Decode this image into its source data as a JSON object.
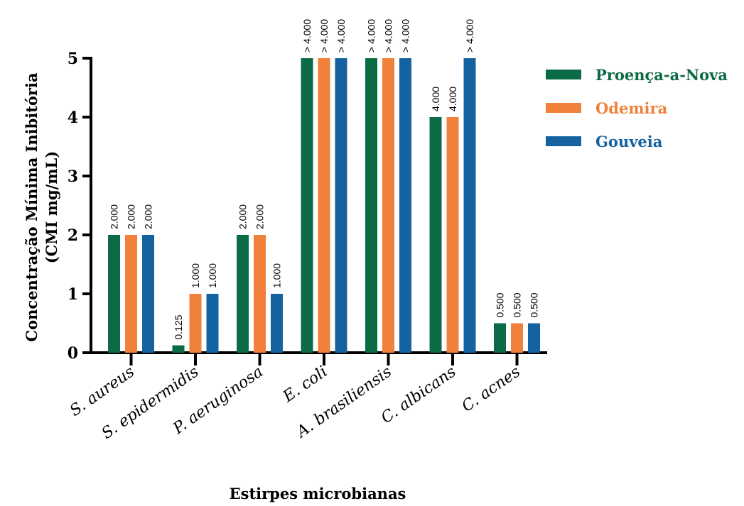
{
  "chart_data": {
    "type": "bar",
    "title": "",
    "ylabel": "Concentração Mínima Inibitória (CMI mg/mL)",
    "ylabel_lines": [
      "Concentração Mínima Inibitória",
      "(CMI mg/mL)"
    ],
    "xlabel": "Estirpes microbianas",
    "ylim": [
      0,
      5
    ],
    "yticks": [
      "0",
      "1",
      "2",
      "3",
      "4",
      "5"
    ],
    "categories": [
      "S. aureus",
      "S. epidermidis",
      "P. aeruginosa",
      "E. coli",
      "A. brasiliensis",
      "C. albicans",
      "C. acnes"
    ],
    "series": [
      {
        "name": "Proença-a-Nova",
        "color": "#0b6b45",
        "values": [
          2.0,
          0.125,
          2.0,
          5,
          5,
          4.0,
          0.5
        ],
        "labels": [
          "2.000",
          "0.125",
          "2.000",
          "> 4.000",
          "> 4.000",
          "4.000",
          "0.500"
        ]
      },
      {
        "name": "Odemira",
        "color": "#f0803a",
        "values": [
          2.0,
          1.0,
          2.0,
          5,
          5,
          4.0,
          0.5
        ],
        "labels": [
          "2.000",
          "1.000",
          "2.000",
          "> 4.000",
          "> 4.000",
          "4.000",
          "0.500"
        ]
      },
      {
        "name": "Gouveia",
        "color": "#1463a0",
        "values": [
          2.0,
          1.0,
          1.0,
          5,
          5,
          5,
          0.5
        ],
        "labels": [
          "2.000",
          "1.000",
          "1.000",
          "> 4.000",
          "> 4.000",
          "> 4.000",
          "0.500"
        ]
      }
    ],
    "grid": false,
    "legend_position": "top-right"
  }
}
